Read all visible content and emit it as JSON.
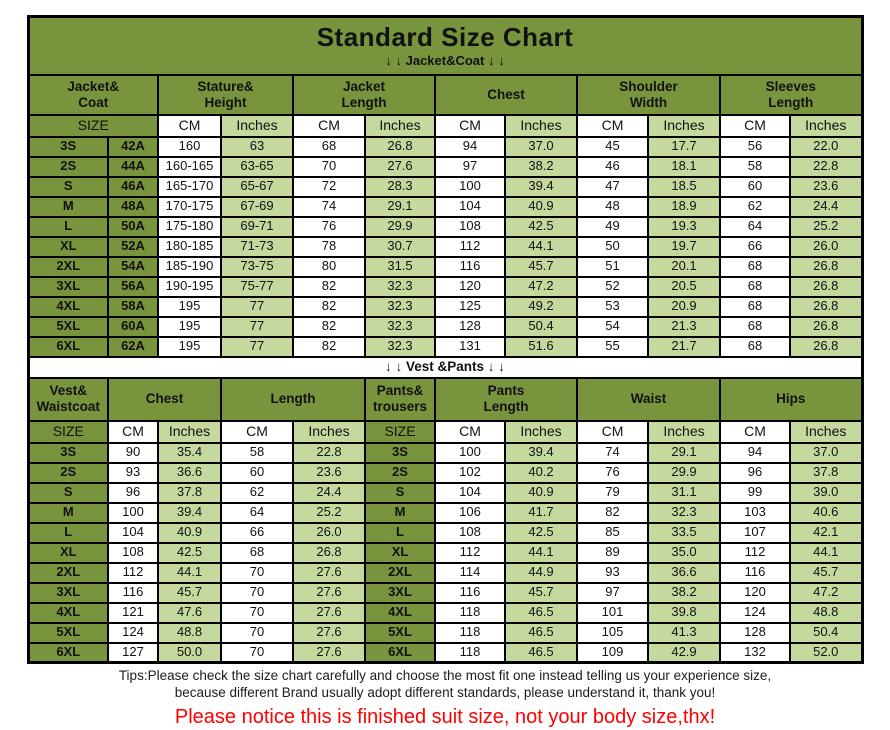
{
  "colors": {
    "green": "#78943c",
    "lgreen": "#c5d89d",
    "red": "#fe0000",
    "ink": "#121212"
  },
  "header": {
    "title": "Standard Size Chart",
    "subtitle": "↓ ↓  Jacket&Coat  ↓ ↓"
  },
  "divider": {
    "vest": "↓ ↓  Vest &Pants  ↓ ↓"
  },
  "labels": {
    "size": "SIZE",
    "cm": "CM",
    "inches": "Inches"
  },
  "jacket_table": {
    "groups": [
      "Jacket&\nCoat",
      "Stature&\nHeight",
      "Jacket\nLength",
      "Chest",
      "Shoulder\nWidth",
      "Sleeves\nLength"
    ],
    "rows": [
      {
        "size": "3S",
        "code": "42A",
        "values": [
          "160",
          "63",
          "68",
          "26.8",
          "94",
          "37.0",
          "45",
          "17.7",
          "56",
          "22.0"
        ]
      },
      {
        "size": "2S",
        "code": "44A",
        "values": [
          "160-165",
          "63-65",
          "70",
          "27.6",
          "97",
          "38.2",
          "46",
          "18.1",
          "58",
          "22.8"
        ]
      },
      {
        "size": "S",
        "code": "46A",
        "values": [
          "165-170",
          "65-67",
          "72",
          "28.3",
          "100",
          "39.4",
          "47",
          "18.5",
          "60",
          "23.6"
        ]
      },
      {
        "size": "M",
        "code": "48A",
        "values": [
          "170-175",
          "67-69",
          "74",
          "29.1",
          "104",
          "40.9",
          "48",
          "18.9",
          "62",
          "24.4"
        ]
      },
      {
        "size": "L",
        "code": "50A",
        "values": [
          "175-180",
          "69-71",
          "76",
          "29.9",
          "108",
          "42.5",
          "49",
          "19.3",
          "64",
          "25.2"
        ]
      },
      {
        "size": "XL",
        "code": "52A",
        "values": [
          "180-185",
          "71-73",
          "78",
          "30.7",
          "112",
          "44.1",
          "50",
          "19.7",
          "66",
          "26.0"
        ]
      },
      {
        "size": "2XL",
        "code": "54A",
        "values": [
          "185-190",
          "73-75",
          "80",
          "31.5",
          "116",
          "45.7",
          "51",
          "20.1",
          "68",
          "26.8"
        ]
      },
      {
        "size": "3XL",
        "code": "56A",
        "values": [
          "190-195",
          "75-77",
          "82",
          "32.3",
          "120",
          "47.2",
          "52",
          "20.5",
          "68",
          "26.8"
        ]
      },
      {
        "size": "4XL",
        "code": "58A",
        "values": [
          "195",
          "77",
          "82",
          "32.3",
          "125",
          "49.2",
          "53",
          "20.9",
          "68",
          "26.8"
        ]
      },
      {
        "size": "5XL",
        "code": "60A",
        "values": [
          "195",
          "77",
          "82",
          "32.3",
          "128",
          "50.4",
          "54",
          "21.3",
          "68",
          "26.8"
        ]
      },
      {
        "size": "6XL",
        "code": "62A",
        "values": [
          "195",
          "77",
          "82",
          "32.3",
          "131",
          "51.6",
          "55",
          "21.7",
          "68",
          "26.8"
        ]
      }
    ]
  },
  "vest_table": {
    "groups": [
      "Vest&\nWaistcoat",
      "Chest",
      "Length",
      "Pants&\ntrousers",
      "Pants\nLength",
      "Waist",
      "Hips"
    ],
    "rows": [
      {
        "size": "3S",
        "vest_values": [
          "90",
          "35.4",
          "58",
          "22.8"
        ],
        "pants_size": "3S",
        "pants_values": [
          "100",
          "39.4",
          "74",
          "29.1",
          "94",
          "37.0"
        ]
      },
      {
        "size": "2S",
        "vest_values": [
          "93",
          "36.6",
          "60",
          "23.6"
        ],
        "pants_size": "2S",
        "pants_values": [
          "102",
          "40.2",
          "76",
          "29.9",
          "96",
          "37.8"
        ]
      },
      {
        "size": "S",
        "vest_values": [
          "96",
          "37.8",
          "62",
          "24.4"
        ],
        "pants_size": "S",
        "pants_values": [
          "104",
          "40.9",
          "79",
          "31.1",
          "99",
          "39.0"
        ]
      },
      {
        "size": "M",
        "vest_values": [
          "100",
          "39.4",
          "64",
          "25.2"
        ],
        "pants_size": "M",
        "pants_values": [
          "106",
          "41.7",
          "82",
          "32.3",
          "103",
          "40.6"
        ]
      },
      {
        "size": "L",
        "vest_values": [
          "104",
          "40.9",
          "66",
          "26.0"
        ],
        "pants_size": "L",
        "pants_values": [
          "108",
          "42.5",
          "85",
          "33.5",
          "107",
          "42.1"
        ]
      },
      {
        "size": "XL",
        "vest_values": [
          "108",
          "42.5",
          "68",
          "26.8"
        ],
        "pants_size": "XL",
        "pants_values": [
          "112",
          "44.1",
          "89",
          "35.0",
          "112",
          "44.1"
        ]
      },
      {
        "size": "2XL",
        "vest_values": [
          "112",
          "44.1",
          "70",
          "27.6"
        ],
        "pants_size": "2XL",
        "pants_values": [
          "114",
          "44.9",
          "93",
          "36.6",
          "116",
          "45.7"
        ]
      },
      {
        "size": "3XL",
        "vest_values": [
          "116",
          "45.7",
          "70",
          "27.6"
        ],
        "pants_size": "3XL",
        "pants_values": [
          "116",
          "45.7",
          "97",
          "38.2",
          "120",
          "47.2"
        ]
      },
      {
        "size": "4XL",
        "vest_values": [
          "121",
          "47.6",
          "70",
          "27.6"
        ],
        "pants_size": "4XL",
        "pants_values": [
          "118",
          "46.5",
          "101",
          "39.8",
          "124",
          "48.8"
        ]
      },
      {
        "size": "5XL",
        "vest_values": [
          "124",
          "48.8",
          "70",
          "27.6"
        ],
        "pants_size": "5XL",
        "pants_values": [
          "118",
          "46.5",
          "105",
          "41.3",
          "128",
          "50.4"
        ]
      },
      {
        "size": "6XL",
        "vest_values": [
          "127",
          "50.0",
          "70",
          "27.6"
        ],
        "pants_size": "6XL",
        "pants_values": [
          "118",
          "46.5",
          "109",
          "42.9",
          "132",
          "52.0"
        ]
      }
    ]
  },
  "footer": {
    "tips_line1": "Tips:Please check the size chart carefully and choose the most fit one instead telling us your experience size,",
    "tips_line2": "because different Brand usually adopt different standards, please understand it, thank you!",
    "notice": "Please notice this is finished suit size, not your body size,thx!"
  }
}
